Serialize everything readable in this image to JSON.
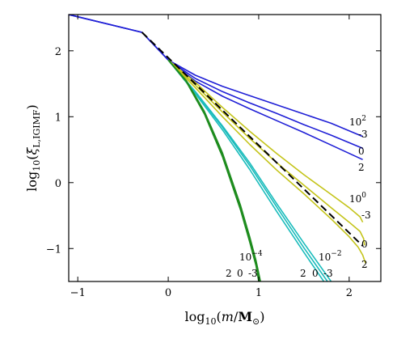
{
  "chart_data": {
    "type": "line",
    "xlabel": "log10(m/M☉)",
    "ylabel": "log10(ξL,IGIMF)",
    "xlim": [
      -1.1,
      2.35
    ],
    "ylim": [
      -1.5,
      2.55
    ],
    "xticks": [
      -1,
      0,
      1,
      2
    ],
    "yticks": [
      -1,
      0,
      1,
      2
    ],
    "xtick_labels": [
      "−1",
      "0",
      "1",
      "2"
    ],
    "ytick_labels": [
      "−1",
      "0",
      "1",
      "2"
    ],
    "grid": false,
    "colors": {
      "blue": "#1f1fd6",
      "yellow": "#c4c41a",
      "cyan": "#1bbcbc",
      "green": "#1e8c1e",
      "reference": "#000000"
    },
    "groups": [
      {
        "id": "g100",
        "color": "blue",
        "label_lines": [
          "10",
          "2"
        ],
        "sublabels": [
          "-3",
          "0",
          "2"
        ],
        "series": [
          {
            "x": [
              -1.1,
              -0.29,
              0.0,
              0.3,
              0.6,
              0.9,
              1.2,
              1.5,
              1.8,
              2.15
            ],
            "y": [
              2.55,
              2.28,
              1.86,
              1.63,
              1.46,
              1.32,
              1.18,
              1.04,
              0.9,
              0.7
            ]
          },
          {
            "x": [
              -1.1,
              -0.29,
              0.0,
              0.3,
              0.6,
              0.9,
              1.2,
              1.5,
              1.8,
              2.15
            ],
            "y": [
              2.55,
              2.28,
              1.86,
              1.58,
              1.38,
              1.21,
              1.05,
              0.88,
              0.72,
              0.52
            ]
          },
          {
            "x": [
              -1.1,
              -0.29,
              0.0,
              0.3,
              0.6,
              0.9,
              1.2,
              1.5,
              1.8,
              2.15
            ],
            "y": [
              2.55,
              2.28,
              1.86,
              1.54,
              1.31,
              1.12,
              0.94,
              0.76,
              0.57,
              0.35
            ]
          }
        ]
      },
      {
        "id": "g1",
        "color": "yellow",
        "label_lines": [
          "10",
          "0"
        ],
        "sublabels": [
          "-3",
          "0",
          "2"
        ],
        "series": [
          {
            "x": [
              0.0,
              0.3,
              0.6,
              0.9,
              1.2,
              1.5,
              1.8,
              2.0,
              2.12,
              2.15
            ],
            "y": [
              1.86,
              1.52,
              1.14,
              0.78,
              0.44,
              0.12,
              -0.18,
              -0.38,
              -0.52,
              -0.6
            ]
          },
          {
            "x": [
              0.0,
              0.3,
              0.6,
              0.9,
              1.2,
              1.5,
              1.8,
              2.0,
              2.12,
              2.16,
              2.17
            ],
            "y": [
              1.86,
              1.48,
              1.07,
              0.67,
              0.3,
              -0.04,
              -0.38,
              -0.6,
              -0.74,
              -0.85,
              -0.95
            ]
          },
          {
            "x": [
              0.0,
              0.3,
              0.6,
              0.9,
              1.2,
              1.5,
              1.8,
              2.0,
              2.1,
              2.15,
              2.18
            ],
            "y": [
              1.86,
              1.44,
              1.0,
              0.58,
              0.19,
              -0.17,
              -0.55,
              -0.82,
              -0.98,
              -1.1,
              -1.22
            ]
          }
        ]
      },
      {
        "id": "g001",
        "color": "cyan",
        "label_lines": [
          "10",
          "−2"
        ],
        "sublabels": [
          "2",
          "0",
          "-3"
        ],
        "series": [
          {
            "x": [
              0.0,
              0.3,
              0.6,
              0.9,
              1.2,
              1.5,
              1.8
            ],
            "y": [
              1.86,
              1.38,
              0.86,
              0.3,
              -0.32,
              -0.92,
              -1.5
            ]
          },
          {
            "x": [
              0.0,
              0.3,
              0.6,
              0.9,
              1.2,
              1.5,
              1.76
            ],
            "y": [
              1.86,
              1.37,
              0.84,
              0.26,
              -0.37,
              -0.99,
              -1.5
            ]
          },
          {
            "x": [
              0.0,
              0.3,
              0.6,
              0.9,
              1.2,
              1.5,
              1.72
            ],
            "y": [
              1.86,
              1.35,
              0.8,
              0.2,
              -0.44,
              -1.06,
              -1.5
            ]
          }
        ]
      },
      {
        "id": "g00001",
        "color": "green",
        "label_lines": [
          "10",
          "−4"
        ],
        "sublabels": [
          "2",
          "0",
          "-3"
        ],
        "series": [
          {
            "x": [
              0.0,
              0.2,
              0.4,
              0.6,
              0.8,
              0.9,
              0.97,
              1.02
            ],
            "y": [
              1.86,
              1.55,
              1.08,
              0.45,
              -0.35,
              -0.82,
              -1.18,
              -1.5
            ]
          },
          {
            "x": [
              0.0,
              0.2,
              0.4,
              0.6,
              0.8,
              0.9,
              0.97,
              1.01
            ],
            "y": [
              1.86,
              1.54,
              1.06,
              0.42,
              -0.38,
              -0.86,
              -1.22,
              -1.5
            ]
          },
          {
            "x": [
              0.0,
              0.2,
              0.4,
              0.6,
              0.8,
              0.9,
              0.97,
              1.0
            ],
            "y": [
              1.86,
              1.53,
              1.04,
              0.39,
              -0.42,
              -0.9,
              -1.26,
              -1.5
            ]
          }
        ]
      }
    ],
    "reference_line": {
      "style": "dashed",
      "x": [
        -0.29,
        2.15
      ],
      "y": [
        2.28,
        -0.96
      ]
    }
  }
}
